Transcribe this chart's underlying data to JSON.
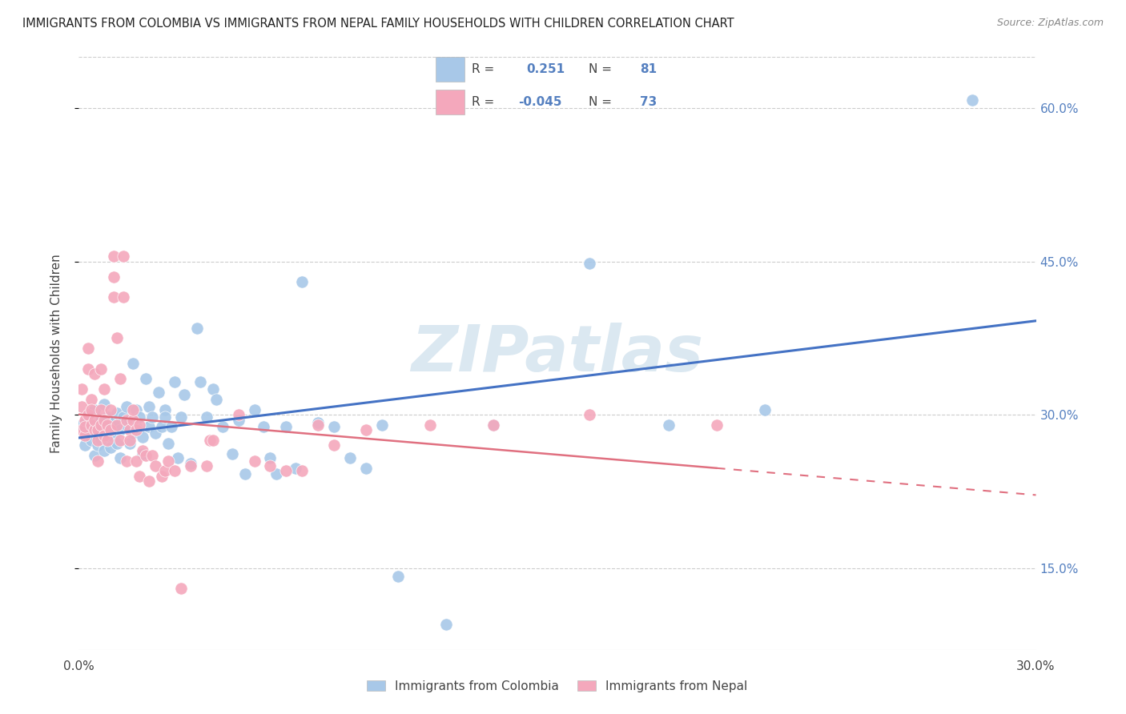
{
  "title": "IMMIGRANTS FROM COLOMBIA VS IMMIGRANTS FROM NEPAL FAMILY HOUSEHOLDS WITH CHILDREN CORRELATION CHART",
  "source": "Source: ZipAtlas.com",
  "ylabel": "Family Households with Children",
  "x_min": 0.0,
  "x_max": 0.3,
  "y_min": 0.07,
  "y_max": 0.65,
  "colombia_R": 0.251,
  "colombia_N": 81,
  "nepal_R": -0.045,
  "nepal_N": 73,
  "colombia_color": "#a8c8e8",
  "nepal_color": "#f4a8bc",
  "trendline_colombia_color": "#4472c4",
  "trendline_nepal_color": "#e07080",
  "watermark": "ZIPatlas",
  "colombia_scatter": [
    [
      0.001,
      0.29
    ],
    [
      0.002,
      0.285
    ],
    [
      0.002,
      0.27
    ],
    [
      0.003,
      0.295
    ],
    [
      0.003,
      0.3
    ],
    [
      0.004,
      0.275
    ],
    [
      0.004,
      0.29
    ],
    [
      0.005,
      0.26
    ],
    [
      0.005,
      0.305
    ],
    [
      0.006,
      0.27
    ],
    [
      0.006,
      0.285
    ],
    [
      0.007,
      0.295
    ],
    [
      0.007,
      0.275
    ],
    [
      0.008,
      0.265
    ],
    [
      0.008,
      0.31
    ],
    [
      0.009,
      0.28
    ],
    [
      0.009,
      0.298
    ],
    [
      0.01,
      0.268
    ],
    [
      0.01,
      0.288
    ],
    [
      0.011,
      0.278
    ],
    [
      0.011,
      0.292
    ],
    [
      0.012,
      0.302
    ],
    [
      0.012,
      0.272
    ],
    [
      0.013,
      0.285
    ],
    [
      0.013,
      0.258
    ],
    [
      0.014,
      0.298
    ],
    [
      0.015,
      0.29
    ],
    [
      0.015,
      0.308
    ],
    [
      0.016,
      0.272
    ],
    [
      0.016,
      0.295
    ],
    [
      0.017,
      0.35
    ],
    [
      0.017,
      0.282
    ],
    [
      0.018,
      0.305
    ],
    [
      0.018,
      0.288
    ],
    [
      0.019,
      0.298
    ],
    [
      0.02,
      0.278
    ],
    [
      0.02,
      0.262
    ],
    [
      0.021,
      0.335
    ],
    [
      0.022,
      0.288
    ],
    [
      0.022,
      0.308
    ],
    [
      0.023,
      0.298
    ],
    [
      0.024,
      0.282
    ],
    [
      0.025,
      0.322
    ],
    [
      0.026,
      0.288
    ],
    [
      0.027,
      0.305
    ],
    [
      0.027,
      0.298
    ],
    [
      0.028,
      0.272
    ],
    [
      0.029,
      0.288
    ],
    [
      0.03,
      0.332
    ],
    [
      0.031,
      0.258
    ],
    [
      0.032,
      0.298
    ],
    [
      0.033,
      0.32
    ],
    [
      0.035,
      0.252
    ],
    [
      0.037,
      0.385
    ],
    [
      0.038,
      0.332
    ],
    [
      0.04,
      0.298
    ],
    [
      0.042,
      0.325
    ],
    [
      0.043,
      0.315
    ],
    [
      0.045,
      0.288
    ],
    [
      0.048,
      0.262
    ],
    [
      0.05,
      0.295
    ],
    [
      0.052,
      0.242
    ],
    [
      0.055,
      0.305
    ],
    [
      0.058,
      0.288
    ],
    [
      0.06,
      0.258
    ],
    [
      0.062,
      0.242
    ],
    [
      0.065,
      0.288
    ],
    [
      0.068,
      0.248
    ],
    [
      0.07,
      0.43
    ],
    [
      0.075,
      0.292
    ],
    [
      0.08,
      0.288
    ],
    [
      0.085,
      0.258
    ],
    [
      0.09,
      0.248
    ],
    [
      0.095,
      0.29
    ],
    [
      0.1,
      0.142
    ],
    [
      0.115,
      0.095
    ],
    [
      0.13,
      0.29
    ],
    [
      0.16,
      0.448
    ],
    [
      0.185,
      0.29
    ],
    [
      0.215,
      0.305
    ],
    [
      0.28,
      0.608
    ]
  ],
  "nepal_scatter": [
    [
      0.001,
      0.285
    ],
    [
      0.001,
      0.308
    ],
    [
      0.001,
      0.325
    ],
    [
      0.002,
      0.28
    ],
    [
      0.002,
      0.295
    ],
    [
      0.002,
      0.288
    ],
    [
      0.003,
      0.345
    ],
    [
      0.003,
      0.365
    ],
    [
      0.003,
      0.3
    ],
    [
      0.004,
      0.315
    ],
    [
      0.004,
      0.29
    ],
    [
      0.004,
      0.305
    ],
    [
      0.005,
      0.285
    ],
    [
      0.005,
      0.34
    ],
    [
      0.005,
      0.295
    ],
    [
      0.006,
      0.275
    ],
    [
      0.006,
      0.255
    ],
    [
      0.006,
      0.285
    ],
    [
      0.007,
      0.305
    ],
    [
      0.007,
      0.345
    ],
    [
      0.007,
      0.29
    ],
    [
      0.008,
      0.325
    ],
    [
      0.008,
      0.28
    ],
    [
      0.008,
      0.295
    ],
    [
      0.009,
      0.29
    ],
    [
      0.009,
      0.275
    ],
    [
      0.01,
      0.305
    ],
    [
      0.01,
      0.285
    ],
    [
      0.011,
      0.455
    ],
    [
      0.011,
      0.415
    ],
    [
      0.011,
      0.435
    ],
    [
      0.012,
      0.375
    ],
    [
      0.012,
      0.29
    ],
    [
      0.013,
      0.335
    ],
    [
      0.013,
      0.275
    ],
    [
      0.014,
      0.455
    ],
    [
      0.014,
      0.415
    ],
    [
      0.015,
      0.255
    ],
    [
      0.015,
      0.295
    ],
    [
      0.016,
      0.285
    ],
    [
      0.016,
      0.275
    ],
    [
      0.017,
      0.295
    ],
    [
      0.017,
      0.305
    ],
    [
      0.018,
      0.255
    ],
    [
      0.018,
      0.285
    ],
    [
      0.019,
      0.29
    ],
    [
      0.019,
      0.24
    ],
    [
      0.02,
      0.265
    ],
    [
      0.021,
      0.26
    ],
    [
      0.022,
      0.235
    ],
    [
      0.023,
      0.26
    ],
    [
      0.024,
      0.25
    ],
    [
      0.026,
      0.24
    ],
    [
      0.027,
      0.245
    ],
    [
      0.028,
      0.255
    ],
    [
      0.03,
      0.245
    ],
    [
      0.032,
      0.13
    ],
    [
      0.035,
      0.25
    ],
    [
      0.04,
      0.25
    ],
    [
      0.041,
      0.275
    ],
    [
      0.042,
      0.275
    ],
    [
      0.05,
      0.3
    ],
    [
      0.055,
      0.255
    ],
    [
      0.06,
      0.25
    ],
    [
      0.065,
      0.245
    ],
    [
      0.07,
      0.245
    ],
    [
      0.075,
      0.29
    ],
    [
      0.08,
      0.27
    ],
    [
      0.09,
      0.285
    ],
    [
      0.11,
      0.29
    ],
    [
      0.13,
      0.29
    ],
    [
      0.16,
      0.3
    ],
    [
      0.2,
      0.29
    ]
  ],
  "x_ticks": [
    0.0,
    0.05,
    0.1,
    0.15,
    0.2,
    0.25,
    0.3
  ],
  "x_tick_labels": [
    "0.0%",
    "",
    "",
    "",
    "",
    "",
    "30.0%"
  ],
  "y_ticks": [
    0.15,
    0.3,
    0.45,
    0.6
  ],
  "y_tick_labels": [
    "15.0%",
    "30.0%",
    "45.0%",
    "60.0%"
  ]
}
